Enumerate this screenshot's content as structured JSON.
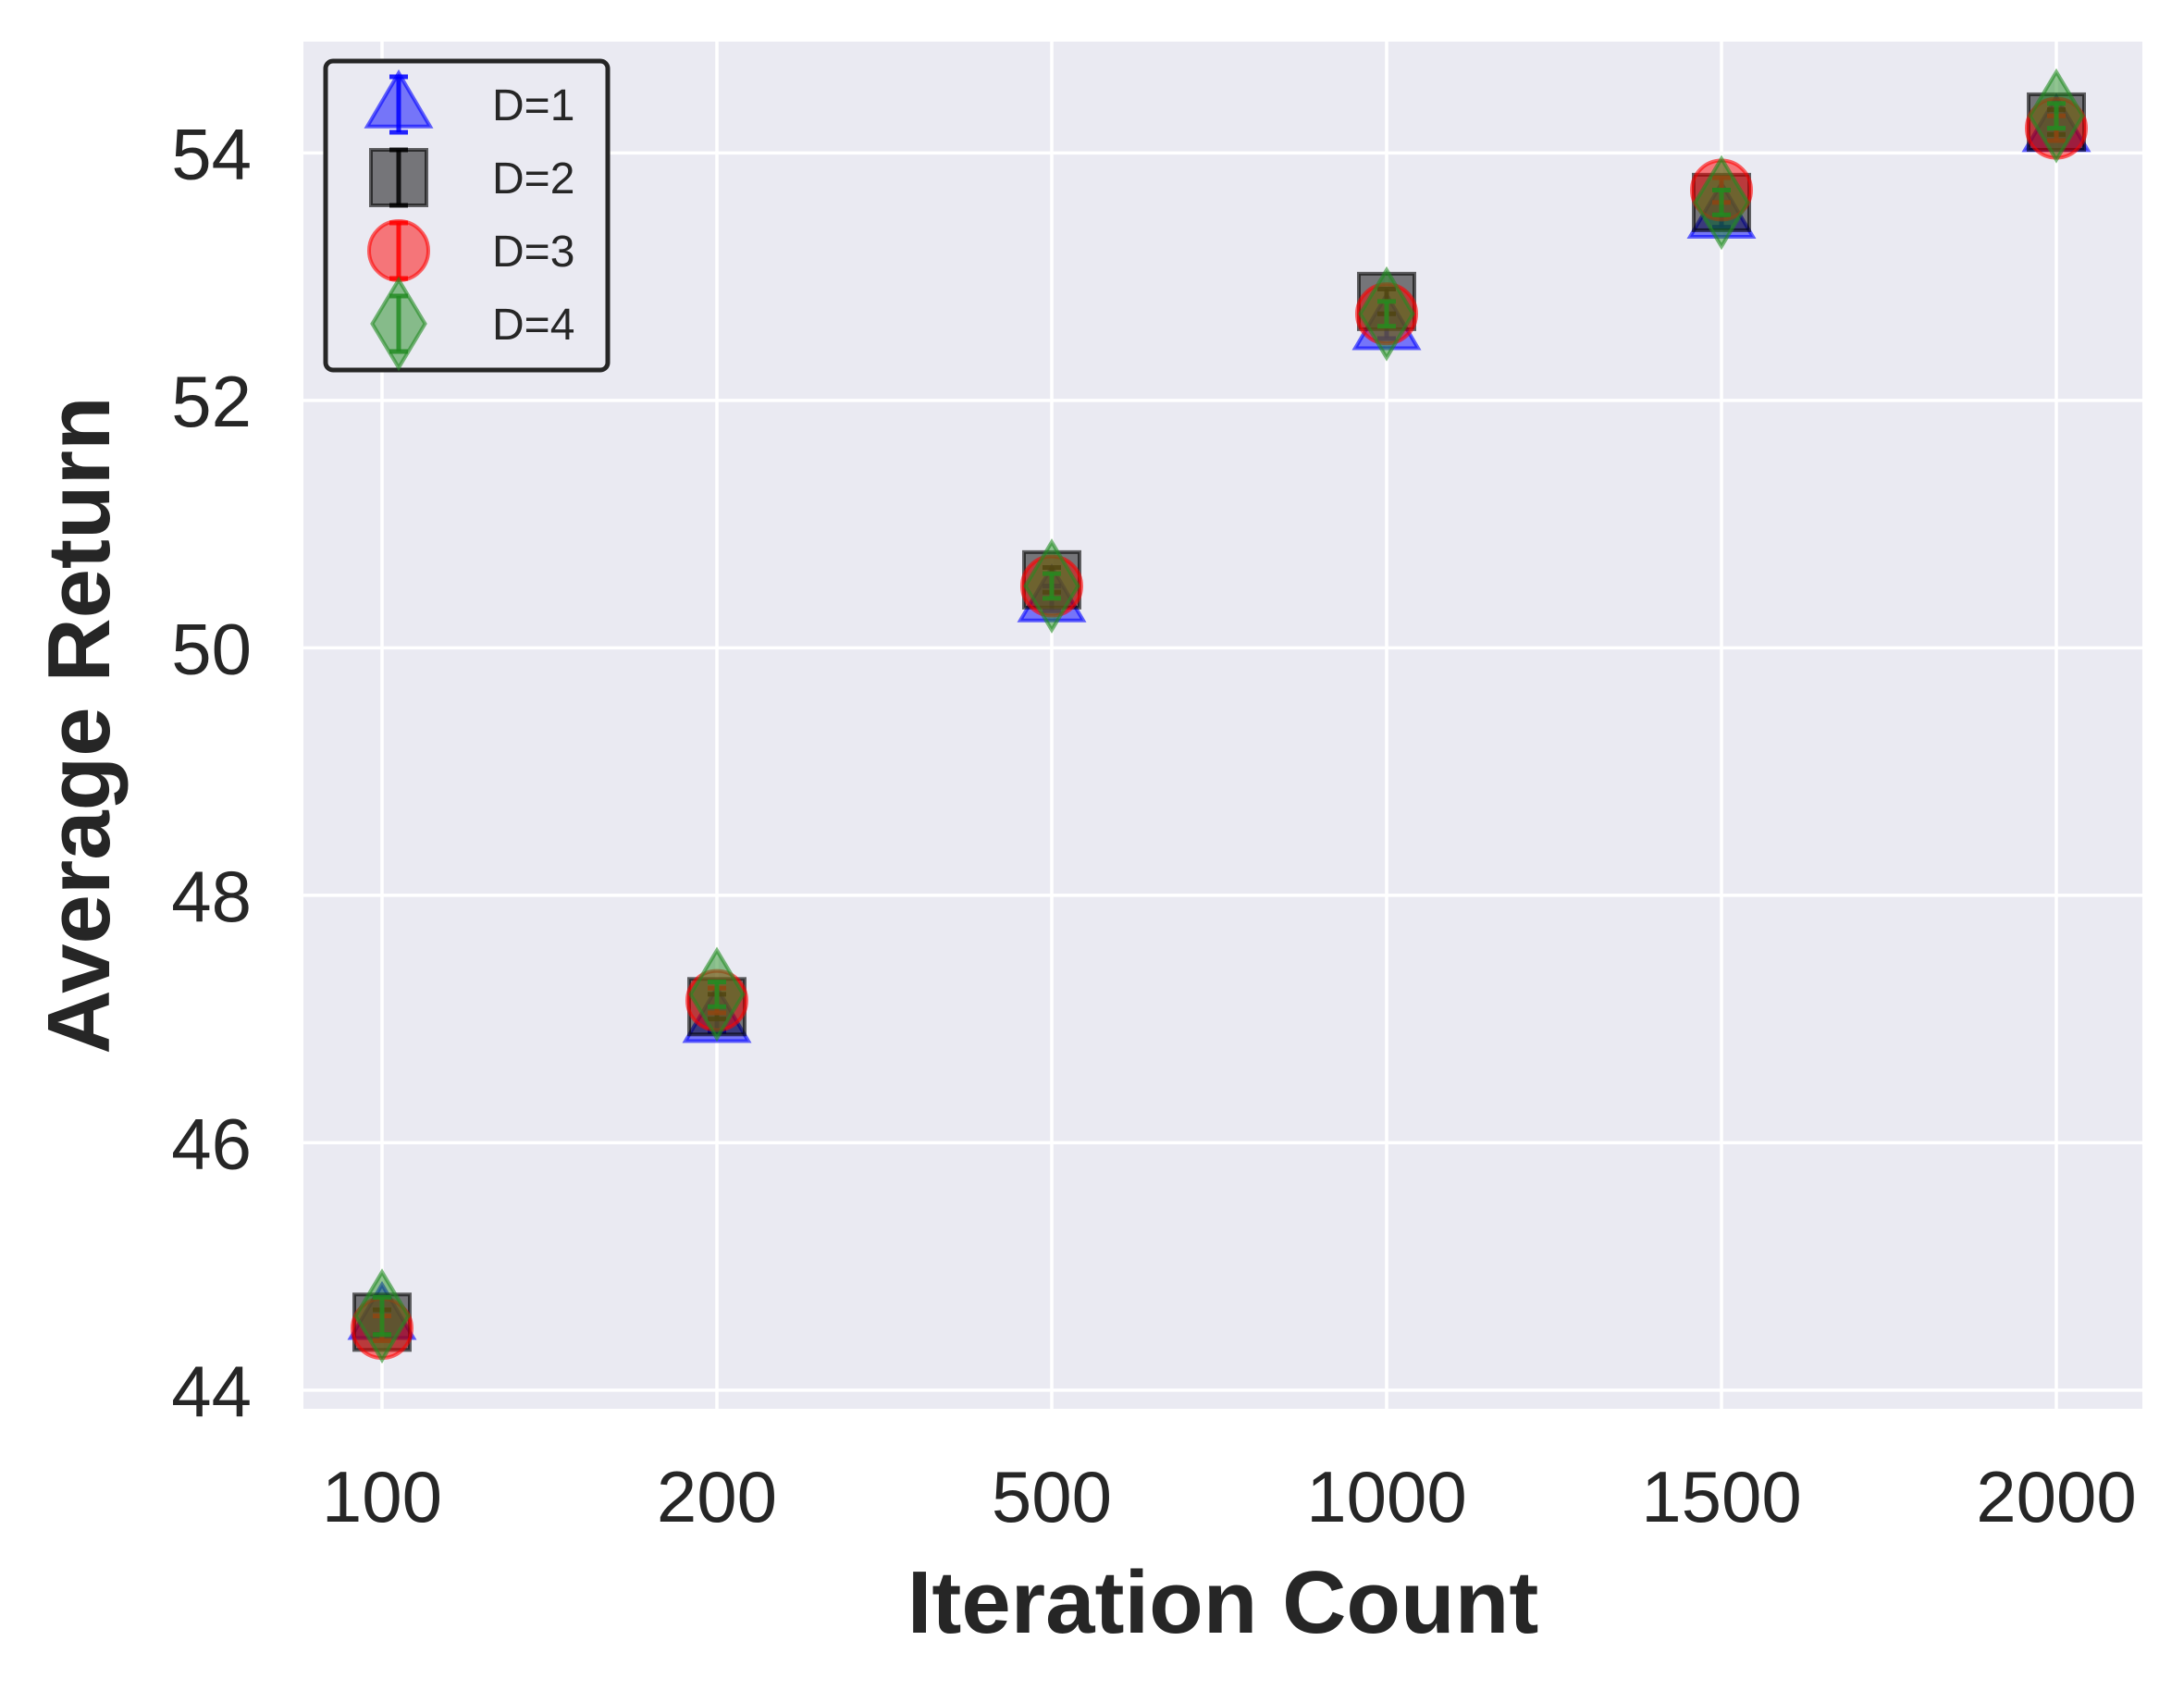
{
  "chart_data": {
    "type": "scatter",
    "xlabel": "Iteration Count",
    "ylabel": "Average Return",
    "categories": [
      "100",
      "200",
      "500",
      "1000",
      "1500",
      "2000"
    ],
    "y_ticks": [
      "44",
      "46",
      "48",
      "50",
      "52",
      "54"
    ],
    "ylim": [
      43.85,
      54.9
    ],
    "grid": true,
    "legend_position": "top-left",
    "series": [
      {
        "name": "D=1",
        "marker": "triangle",
        "color": "#0000ff",
        "values": [
          44.6,
          47.0,
          50.4,
          52.6,
          53.5,
          54.2
        ],
        "errors": [
          0.15,
          0.1,
          0.1,
          0.1,
          0.1,
          0.1
        ]
      },
      {
        "name": "D=2",
        "marker": "square",
        "color": "#000000",
        "values": [
          44.55,
          47.1,
          50.55,
          52.8,
          53.6,
          54.25
        ],
        "errors": [
          0.1,
          0.1,
          0.1,
          0.1,
          0.1,
          0.1
        ]
      },
      {
        "name": "D=3",
        "marker": "circle",
        "color": "#ff0000",
        "values": [
          44.5,
          47.15,
          50.5,
          52.7,
          53.7,
          54.2
        ],
        "errors": [
          0.1,
          0.1,
          0.1,
          0.1,
          0.1,
          0.1
        ]
      },
      {
        "name": "D=4",
        "marker": "diamond",
        "color": "#228b22",
        "values": [
          44.6,
          47.2,
          50.5,
          52.7,
          53.6,
          54.3
        ],
        "errors": [
          0.15,
          0.1,
          0.1,
          0.1,
          0.1,
          0.1
        ]
      }
    ]
  }
}
